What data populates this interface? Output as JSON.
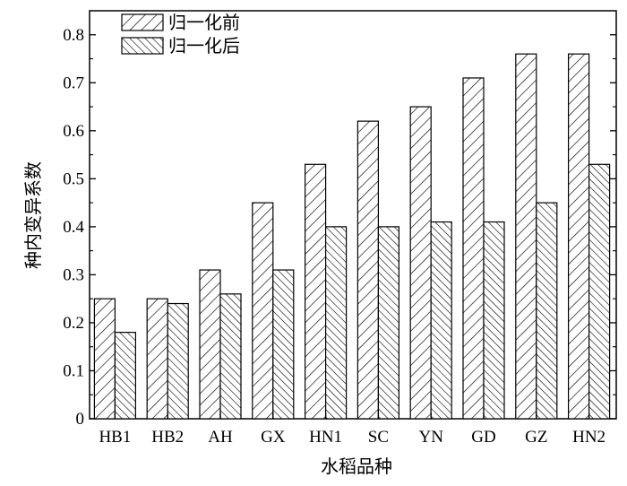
{
  "chart_data": {
    "type": "bar",
    "xlabel": "水稻品种",
    "ylabel": "种内变异系数",
    "ylim": [
      0,
      0.85
    ],
    "yticks": [
      0,
      0.1,
      0.2,
      0.3,
      0.4,
      0.5,
      0.6,
      0.7,
      0.8
    ],
    "ytick_labels": [
      "0",
      "0.1",
      "0.2",
      "0.3",
      "0.4",
      "0.5",
      "0.6",
      "0.7",
      "0.8"
    ],
    "categories": [
      "HB1",
      "HB2",
      "AH",
      "GX",
      "HN1",
      "SC",
      "YN",
      "GD",
      "GZ",
      "HN2"
    ],
    "series": [
      {
        "name": "归一化前",
        "pattern": "forward-hatch",
        "values": [
          0.25,
          0.25,
          0.31,
          0.45,
          0.53,
          0.62,
          0.65,
          0.71,
          0.76,
          0.76
        ]
      },
      {
        "name": "归一化后",
        "pattern": "back-hatch",
        "values": [
          0.18,
          0.24,
          0.26,
          0.31,
          0.4,
          0.4,
          0.41,
          0.41,
          0.45,
          0.53
        ]
      }
    ],
    "legend_position": "top-left",
    "grid": false,
    "colors": {
      "stroke": "#000000",
      "fill": "#ffffff"
    }
  }
}
